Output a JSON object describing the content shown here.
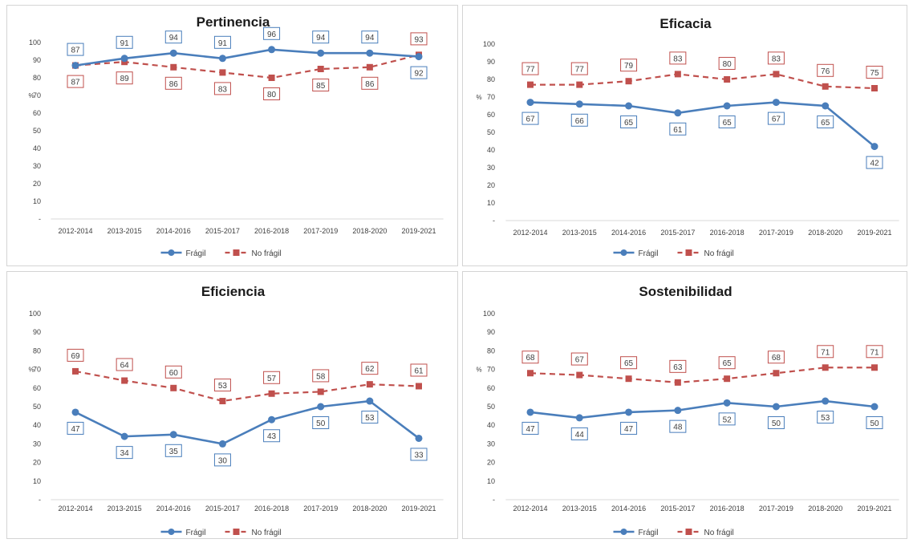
{
  "colors": {
    "fragil": "#4a7ebb",
    "no_fragil": "#c0504d"
  },
  "legend": {
    "fragil": "Frágil",
    "no_fragil": "No frágil"
  },
  "chart_data": [
    {
      "type": "line",
      "title": "Pertinencia",
      "ylabel": "%",
      "ylim": [
        0,
        100
      ],
      "yticks": [
        "-",
        "10",
        "20",
        "30",
        "40",
        "50",
        "60",
        "70",
        "80",
        "90",
        "100"
      ],
      "categories": [
        "2012-2014",
        "2013-2015",
        "2014-2016",
        "2015-2017",
        "2016-2018",
        "2017-2019",
        "2018-2020",
        "2019-2021"
      ],
      "series": [
        {
          "name": "Frágil",
          "values": [
            87,
            91,
            94,
            91,
            96,
            94,
            94,
            92
          ]
        },
        {
          "name": "No frágil",
          "values": [
            87,
            89,
            86,
            83,
            80,
            85,
            86,
            93
          ]
        }
      ],
      "legend_position": "bottom"
    },
    {
      "type": "line",
      "title": "Eficacia",
      "ylabel": "%",
      "ylim": [
        0,
        100
      ],
      "yticks": [
        "-",
        "10",
        "20",
        "30",
        "40",
        "50",
        "60",
        "70",
        "80",
        "90",
        "100"
      ],
      "categories": [
        "2012-2014",
        "2013-2015",
        "2014-2016",
        "2015-2017",
        "2016-2018",
        "2017-2019",
        "2018-2020",
        "2019-2021"
      ],
      "series": [
        {
          "name": "Frágil",
          "values": [
            67,
            66,
            65,
            61,
            65,
            67,
            65,
            42
          ]
        },
        {
          "name": "No frágil",
          "values": [
            77,
            77,
            79,
            83,
            80,
            83,
            76,
            75
          ]
        }
      ],
      "legend_position": "bottom"
    },
    {
      "type": "line",
      "title": "Eficiencia",
      "ylabel": "%",
      "ylim": [
        0,
        100
      ],
      "yticks": [
        "-",
        "10",
        "20",
        "30",
        "40",
        "50",
        "60",
        "70",
        "80",
        "90",
        "100"
      ],
      "categories": [
        "2012-2014",
        "2013-2015",
        "2014-2016",
        "2015-2017",
        "2016-2018",
        "2017-2019",
        "2018-2020",
        "2019-2021"
      ],
      "series": [
        {
          "name": "Frágil",
          "values": [
            47,
            34,
            35,
            30,
            43,
            50,
            53,
            33
          ]
        },
        {
          "name": "No frágil",
          "values": [
            69,
            64,
            60,
            53,
            57,
            58,
            62,
            61
          ]
        }
      ],
      "legend_position": "bottom"
    },
    {
      "type": "line",
      "title": "Sostenibilidad",
      "ylabel": "%",
      "ylim": [
        0,
        100
      ],
      "yticks": [
        "-",
        "10",
        "20",
        "30",
        "40",
        "50",
        "60",
        "70",
        "80",
        "90",
        "100"
      ],
      "categories": [
        "2012-2014",
        "2013-2015",
        "2014-2016",
        "2015-2017",
        "2016-2018",
        "2017-2019",
        "2018-2020",
        "2019-2021"
      ],
      "series": [
        {
          "name": "Frágil",
          "values": [
            47,
            44,
            47,
            48,
            52,
            50,
            53,
            50
          ]
        },
        {
          "name": "No frágil",
          "values": [
            68,
            67,
            65,
            63,
            65,
            68,
            71,
            71
          ]
        }
      ],
      "legend_position": "bottom"
    }
  ]
}
